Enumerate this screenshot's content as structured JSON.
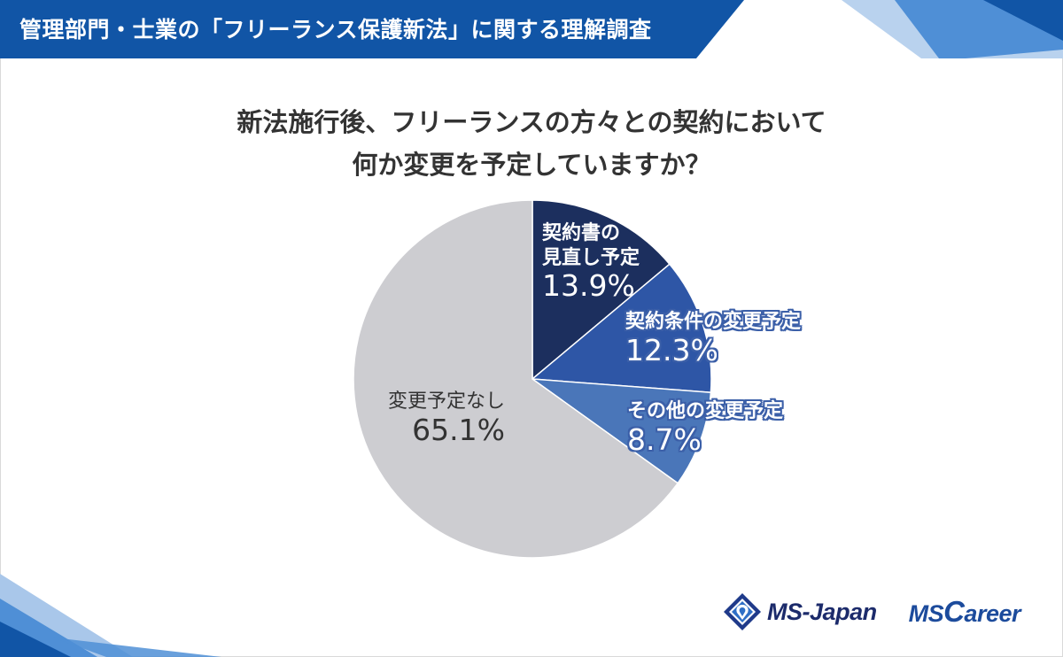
{
  "header": {
    "title": "管理部門・士業の「フリーランス保護新法」に関する理解調査"
  },
  "question": {
    "line1": "新法施行後、フリーランスの方々との契約において",
    "line2": "何か変更を予定していますか？"
  },
  "chart_data": {
    "type": "pie",
    "title": "新法施行後、フリーランスの方々との契約において何か変更を予定していますか？",
    "slices": [
      {
        "label_line1": "契約書の",
        "label_line2": "見直し予定",
        "label": "契約書の見直し予定",
        "value": 13.9,
        "value_text": "13.9%",
        "color": "#1c2f5e"
      },
      {
        "label_line1": "契約条件の変更予定",
        "label_line2": "",
        "label": "契約条件の変更予定",
        "value": 12.3,
        "value_text": "12.3%",
        "color": "#2e56a6"
      },
      {
        "label_line1": "その他の変更予定",
        "label_line2": "",
        "label": "その他の変更予定",
        "value": 8.7,
        "value_text": "8.7%",
        "color": "#4a76b9"
      },
      {
        "label_line1": "変更予定なし",
        "label_line2": "",
        "label": "変更予定なし",
        "value": 65.1,
        "value_text": "65.1%",
        "color": "#cdcdd1"
      }
    ],
    "start_angle_deg": 0,
    "direction": "clockwise"
  },
  "logos": {
    "ms_japan": "MS-Japan",
    "ms_career_ms": "MS",
    "ms_career_c": "C",
    "ms_career_rest": "areer"
  },
  "colors": {
    "header_blue": "#1155a6",
    "header_light_blue": "#4f8fd6",
    "accent_light": "#a9c7ea"
  }
}
